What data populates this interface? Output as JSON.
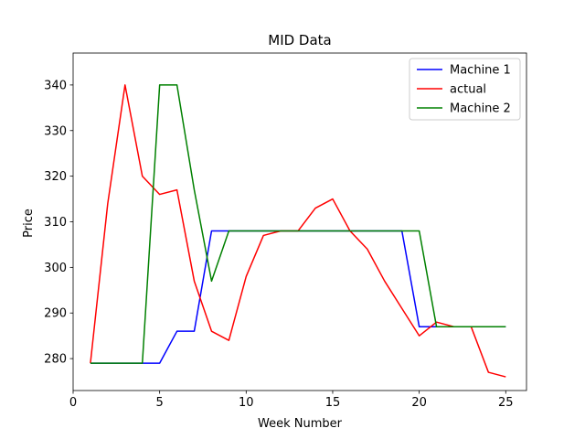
{
  "chart_data": {
    "type": "line",
    "title": "MID Data",
    "xlabel": "Week Number",
    "ylabel": "Price",
    "xlim": [
      0,
      26.2
    ],
    "ylim": [
      273,
      347
    ],
    "xticks": [
      0,
      5,
      10,
      15,
      20,
      25
    ],
    "yticks": [
      280,
      290,
      300,
      310,
      320,
      330,
      340
    ],
    "grid": false,
    "legend_position": "top-right",
    "x": [
      1,
      2,
      3,
      4,
      5,
      6,
      7,
      8,
      9,
      10,
      11,
      12,
      13,
      14,
      15,
      16,
      17,
      18,
      19,
      20,
      21,
      22,
      23,
      24,
      25
    ],
    "series": [
      {
        "name": "Machine 1",
        "color": "#0000ff",
        "values": [
          279,
          279,
          279,
          279,
          279,
          286,
          286,
          308,
          308,
          308,
          308,
          308,
          308,
          308,
          308,
          308,
          308,
          308,
          308,
          287,
          287,
          287,
          287,
          287,
          287
        ]
      },
      {
        "name": "actual",
        "color": "#ff0000",
        "values": [
          279,
          314,
          340,
          320,
          316,
          317,
          297,
          286,
          284,
          298,
          307,
          308,
          308,
          313,
          315,
          308,
          304,
          297,
          291,
          285,
          288,
          287,
          287,
          277,
          276
        ]
      },
      {
        "name": "Machine 2",
        "color": "#008000",
        "values": [
          279,
          279,
          279,
          279,
          340,
          340,
          317,
          297,
          308,
          308,
          308,
          308,
          308,
          308,
          308,
          308,
          308,
          308,
          308,
          308,
          287,
          287,
          287,
          287,
          287
        ]
      }
    ]
  }
}
